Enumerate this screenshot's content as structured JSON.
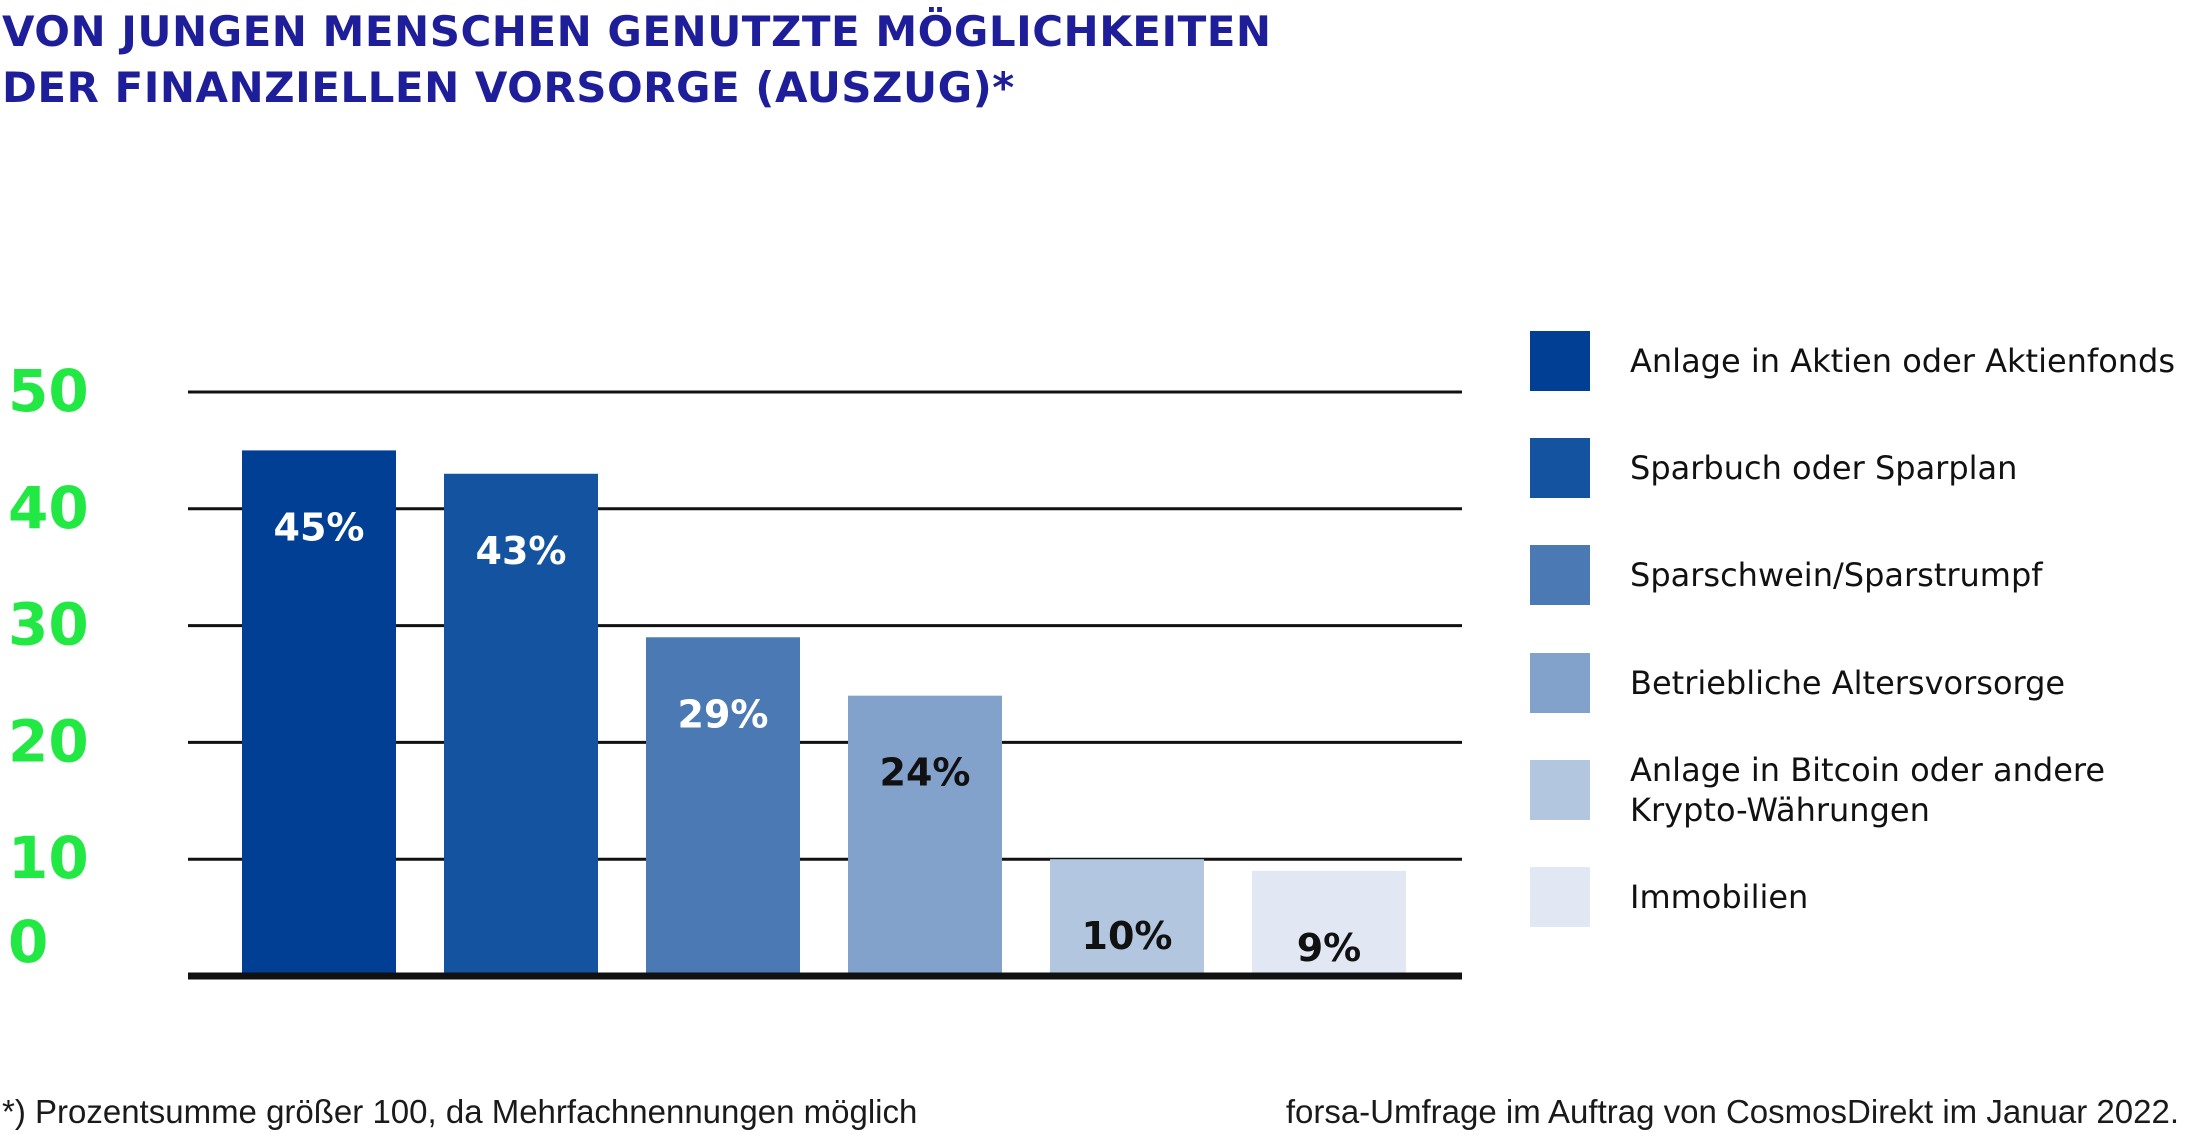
{
  "title_lines": [
    "VON JUNGEN MENSCHEN GENUTZTE MÖGLICHKEITEN",
    "DER FINANZIELLEN VORSORGE (AUSZUG)*"
  ],
  "footnote": "*) Prozentsumme größer 100, da Mehrfachnennungen möglich",
  "source": "forsa-Umfrage im Auftrag von CosmosDirekt im Januar 2022.",
  "colors": {
    "title": "#1e1e9a",
    "ytick": "#22e844",
    "grid": "#111111"
  },
  "chart_data": {
    "type": "bar",
    "ylim": [
      0,
      50
    ],
    "yticks": [
      "0",
      "10",
      "20",
      "30",
      "40",
      "50"
    ],
    "grid": true,
    "legend_position": "right",
    "series": [
      {
        "name": "Anlage in Aktien oder Aktienfonds",
        "value": 45,
        "label": "45%",
        "color": "#003f94",
        "label_color": "#ffffff"
      },
      {
        "name": "Sparbuch oder Sparplan",
        "value": 43,
        "label": "43%",
        "color": "#13539f",
        "label_color": "#ffffff"
      },
      {
        "name": "Sparschwein/Sparstrumpf",
        "value": 29,
        "label": "29%",
        "color": "#4b79b4",
        "label_color": "#ffffff"
      },
      {
        "name": "Betriebliche Altersvorsorge",
        "value": 24,
        "label": "24%",
        "color": "#82a1cb",
        "label_color": "#111111"
      },
      {
        "name": [
          "Anlage in Bitcoin oder andere",
          "Krypto-Währungen"
        ],
        "value": 10,
        "label": "10%",
        "color": "#b2c6e0",
        "label_color": "#111111"
      },
      {
        "name": "Immobilien",
        "value": 9,
        "label": "9%",
        "color": "#e1e8f3",
        "label_color": "#111111"
      }
    ]
  }
}
